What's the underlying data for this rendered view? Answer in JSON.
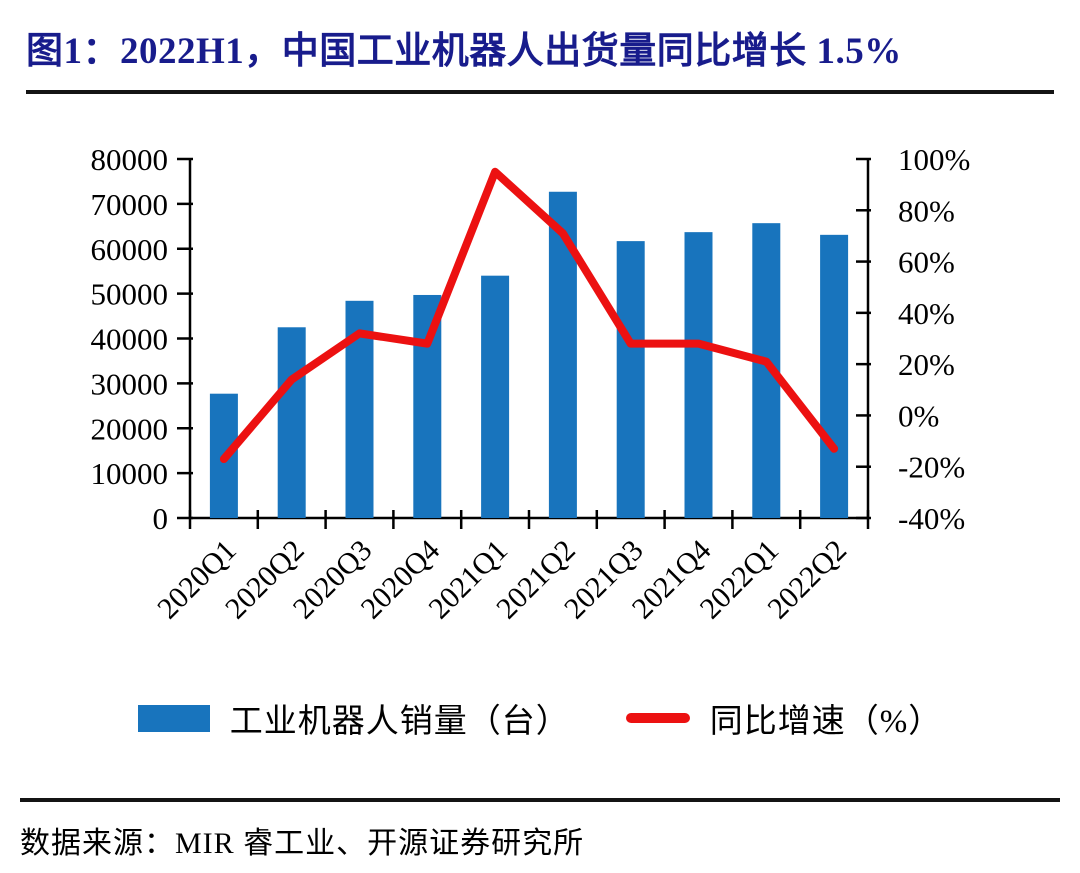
{
  "title": "图1：2022H1，中国工业机器人出货量同比增长 1.5%",
  "source": "数据来源：MIR 睿工业、开源证券研究所",
  "legend": {
    "bars": "工业机器人销量（台）",
    "line": "同比增速（%）"
  },
  "colors": {
    "bar": "#1874BD",
    "line": "#EC1111",
    "title": "#181C8C",
    "axis": "#000000"
  },
  "chart_data": {
    "type": "bar+line combo",
    "categories": [
      "2020Q1",
      "2020Q2",
      "2020Q3",
      "2020Q4",
      "2021Q1",
      "2021Q2",
      "2021Q3",
      "2021Q4",
      "2022Q1",
      "2022Q2"
    ],
    "series": [
      {
        "name": "工业机器人销量（台）",
        "type": "bar",
        "axis": "left",
        "values": [
          27700,
          42500,
          48400,
          49700,
          54000,
          72700,
          61700,
          63700,
          65700,
          63100
        ]
      },
      {
        "name": "同比增速（%）",
        "type": "line",
        "axis": "right",
        "values": [
          -17,
          14,
          32,
          28,
          95,
          71,
          28,
          28,
          21,
          -13
        ]
      }
    ],
    "left_axis": {
      "min": 0,
      "max": 80000,
      "step": 10000,
      "tick_labels": [
        "0",
        "10000",
        "20000",
        "30000",
        "40000",
        "50000",
        "60000",
        "70000",
        "80000"
      ]
    },
    "right_axis": {
      "min": -40,
      "max": 100,
      "step": 20,
      "tick_labels": [
        "-40%",
        "-20%",
        "0%",
        "20%",
        "40%",
        "60%",
        "80%",
        "100%"
      ]
    },
    "grid": false,
    "legend_position": "bottom"
  }
}
